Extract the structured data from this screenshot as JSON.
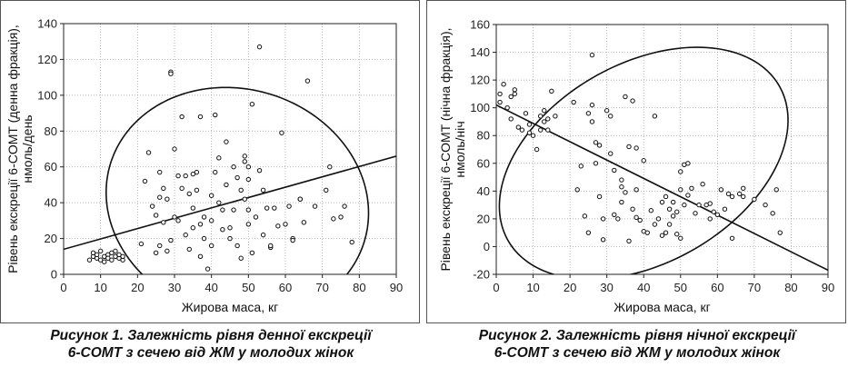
{
  "charts": [
    {
      "caption_line1": "Рисунок 1.  Залежність рівня денної екскреції",
      "caption_line2": "6-COMT з сечею від ЖМ у молодих жінок",
      "chart_data": {
        "type": "scatter",
        "xlabel": "Жирова маса, кг",
        "ylabel_line1": "Рівень екскреції 6-COMT (денна фракція),",
        "ylabel_line2": "нмоль/день",
        "xlim": [
          0,
          90
        ],
        "ylim": [
          0,
          140
        ],
        "xticks": [
          0,
          10,
          20,
          30,
          40,
          50,
          60,
          70,
          80,
          90
        ],
        "yticks": [
          0,
          20,
          40,
          60,
          80,
          100,
          120,
          140
        ],
        "grid": true,
        "regression_line": [
          [
            0,
            14
          ],
          [
            90,
            66
          ]
        ],
        "confidence_ellipse": {
          "center": [
            47,
            40
          ],
          "rx": 35,
          "ry": 65,
          "rotation_deg": 15
        },
        "points": [
          [
            7,
            8
          ],
          [
            8,
            10
          ],
          [
            8,
            12
          ],
          [
            9,
            9
          ],
          [
            9,
            11
          ],
          [
            10,
            8
          ],
          [
            10,
            13
          ],
          [
            11,
            10
          ],
          [
            11,
            7
          ],
          [
            12,
            11
          ],
          [
            12,
            9
          ],
          [
            13,
            12
          ],
          [
            13,
            8
          ],
          [
            14,
            10
          ],
          [
            14,
            13
          ],
          [
            15,
            9
          ],
          [
            15,
            11
          ],
          [
            16,
            8
          ],
          [
            16,
            10
          ],
          [
            21,
            17
          ],
          [
            22,
            52
          ],
          [
            23,
            68
          ],
          [
            24,
            38
          ],
          [
            25,
            12
          ],
          [
            25,
            33
          ],
          [
            26,
            57
          ],
          [
            26,
            43
          ],
          [
            26,
            16
          ],
          [
            27,
            29
          ],
          [
            27,
            48
          ],
          [
            28,
            13
          ],
          [
            28,
            42
          ],
          [
            29,
            113
          ],
          [
            29,
            112
          ],
          [
            29,
            19
          ],
          [
            30,
            32
          ],
          [
            30,
            70
          ],
          [
            31,
            55
          ],
          [
            31,
            30
          ],
          [
            32,
            88
          ],
          [
            32,
            48
          ],
          [
            33,
            55
          ],
          [
            33,
            22
          ],
          [
            34,
            45
          ],
          [
            34,
            14
          ],
          [
            35,
            56
          ],
          [
            35,
            37
          ],
          [
            35,
            26
          ],
          [
            36,
            47
          ],
          [
            36,
            57
          ],
          [
            37,
            88
          ],
          [
            37,
            28
          ],
          [
            37,
            10
          ],
          [
            38,
            20
          ],
          [
            38,
            32
          ],
          [
            39,
            3
          ],
          [
            40,
            16
          ],
          [
            40,
            30
          ],
          [
            40,
            44
          ],
          [
            41,
            57
          ],
          [
            41,
            89
          ],
          [
            42,
            65
          ],
          [
            42,
            40
          ],
          [
            43,
            36
          ],
          [
            43,
            25
          ],
          [
            44,
            50
          ],
          [
            44,
            74
          ],
          [
            45,
            20
          ],
          [
            45,
            26
          ],
          [
            46,
            36
          ],
          [
            46,
            60
          ],
          [
            47,
            16
          ],
          [
            47,
            54
          ],
          [
            48,
            47
          ],
          [
            48,
            9
          ],
          [
            49,
            63
          ],
          [
            49,
            66
          ],
          [
            49,
            42
          ],
          [
            50,
            60
          ],
          [
            50,
            53
          ],
          [
            50,
            36
          ],
          [
            50,
            28
          ],
          [
            51,
            95
          ],
          [
            51,
            12
          ],
          [
            52,
            32
          ],
          [
            53,
            127
          ],
          [
            53,
            58
          ],
          [
            54,
            22
          ],
          [
            54,
            47
          ],
          [
            55,
            37
          ],
          [
            56,
            15
          ],
          [
            56,
            16
          ],
          [
            57,
            37
          ],
          [
            58,
            27
          ],
          [
            59,
            79
          ],
          [
            60,
            28
          ],
          [
            61,
            38
          ],
          [
            62,
            20
          ],
          [
            62,
            19
          ],
          [
            64,
            42
          ],
          [
            64,
            42
          ],
          [
            65,
            29
          ],
          [
            66,
            108
          ],
          [
            68,
            38
          ],
          [
            71,
            47
          ],
          [
            72,
            60
          ],
          [
            73,
            31
          ],
          [
            75,
            32
          ],
          [
            76,
            38
          ],
          [
            78,
            18
          ]
        ]
      }
    },
    {
      "caption_line1": "Рисунок 2.  Залежність рівня нічної екскреції",
      "caption_line2": "6-COMT з сечею від ЖМ у молодих жінок",
      "chart_data": {
        "type": "scatter",
        "xlabel": "Жирова маса, кг",
        "ylabel_line1": "Рівень екскреції 6-COMT (нічна фракція),",
        "ylabel_line2": "нмоль/ніч",
        "xlim": [
          0,
          90
        ],
        "ylim": [
          -20,
          160
        ],
        "xticks": [
          0,
          10,
          20,
          30,
          40,
          50,
          60,
          70,
          80,
          90
        ],
        "yticks": [
          -20,
          0,
          20,
          40,
          60,
          80,
          100,
          120,
          140,
          160
        ],
        "grid": true,
        "regression_line": [
          [
            0,
            102
          ],
          [
            90,
            -17
          ]
        ],
        "confidence_ellipse": {
          "center": [
            40,
            60
          ],
          "rx": 32,
          "ry": 95,
          "rotation_deg": -40
        },
        "points": [
          [
            1,
            110
          ],
          [
            1,
            104
          ],
          [
            2,
            117
          ],
          [
            3,
            100
          ],
          [
            4,
            92
          ],
          [
            4,
            108
          ],
          [
            5,
            110
          ],
          [
            5,
            113
          ],
          [
            6,
            86
          ],
          [
            7,
            84
          ],
          [
            8,
            96
          ],
          [
            9,
            82
          ],
          [
            9,
            88
          ],
          [
            10,
            80
          ],
          [
            11,
            70
          ],
          [
            12,
            84
          ],
          [
            12,
            94
          ],
          [
            13,
            98
          ],
          [
            13,
            90
          ],
          [
            14,
            92
          ],
          [
            14,
            84
          ],
          [
            15,
            112
          ],
          [
            16,
            94
          ],
          [
            21,
            104
          ],
          [
            22,
            41
          ],
          [
            23,
            58
          ],
          [
            24,
            22
          ],
          [
            25,
            10
          ],
          [
            25,
            96
          ],
          [
            26,
            90
          ],
          [
            26,
            138
          ],
          [
            26,
            102
          ],
          [
            27,
            60
          ],
          [
            27,
            75
          ],
          [
            28,
            73
          ],
          [
            28,
            36
          ],
          [
            29,
            20
          ],
          [
            29,
            5
          ],
          [
            30,
            98
          ],
          [
            31,
            94
          ],
          [
            31,
            67
          ],
          [
            32,
            23
          ],
          [
            32,
            55
          ],
          [
            33,
            20
          ],
          [
            34,
            32
          ],
          [
            34,
            43
          ],
          [
            34,
            48
          ],
          [
            35,
            108
          ],
          [
            35,
            39
          ],
          [
            36,
            72
          ],
          [
            36,
            4
          ],
          [
            37,
            27
          ],
          [
            37,
            105
          ],
          [
            38,
            21
          ],
          [
            38,
            71
          ],
          [
            38,
            41
          ],
          [
            39,
            19
          ],
          [
            40,
            11
          ],
          [
            40,
            62
          ],
          [
            41,
            10
          ],
          [
            42,
            26
          ],
          [
            43,
            16
          ],
          [
            43,
            94
          ],
          [
            44,
            20
          ],
          [
            45,
            8
          ],
          [
            45,
            32
          ],
          [
            46,
            36
          ],
          [
            46,
            10
          ],
          [
            47,
            16
          ],
          [
            47,
            27
          ],
          [
            48,
            22
          ],
          [
            48,
            32
          ],
          [
            49,
            9
          ],
          [
            49,
            25
          ],
          [
            50,
            6
          ],
          [
            50,
            54
          ],
          [
            50,
            41
          ],
          [
            51,
            30
          ],
          [
            51,
            59
          ],
          [
            52,
            37
          ],
          [
            52,
            60
          ],
          [
            53,
            42
          ],
          [
            54,
            24
          ],
          [
            55,
            30
          ],
          [
            56,
            45
          ],
          [
            57,
            30
          ],
          [
            58,
            20
          ],
          [
            58,
            31
          ],
          [
            59,
            25
          ],
          [
            60,
            23
          ],
          [
            61,
            41
          ],
          [
            62,
            27
          ],
          [
            63,
            38
          ],
          [
            64,
            6
          ],
          [
            64,
            36
          ],
          [
            66,
            38
          ],
          [
            67,
            36
          ],
          [
            67,
            42
          ],
          [
            70,
            34
          ],
          [
            73,
            30
          ],
          [
            75,
            24
          ],
          [
            76,
            41
          ],
          [
            77,
            10
          ]
        ]
      }
    }
  ]
}
